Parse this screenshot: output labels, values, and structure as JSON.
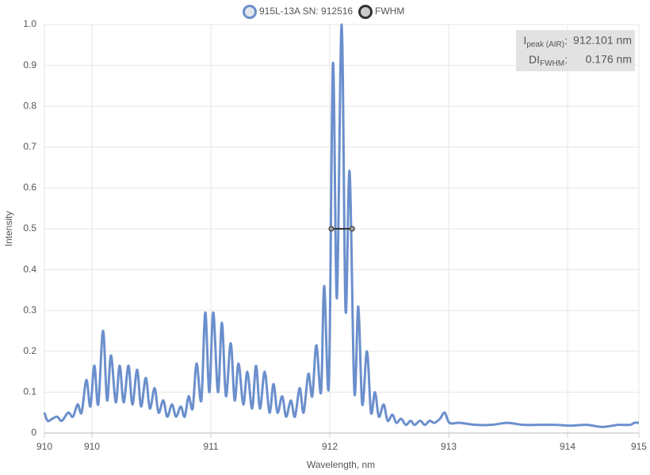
{
  "chart_data": {
    "type": "line",
    "x_label": "Wavelength, nm",
    "y_label": "Intensity",
    "xlim": [
      909.6,
      914.6
    ],
    "ylim": [
      0,
      1
    ],
    "xticks": [
      {
        "value": 909.6,
        "label": "910"
      },
      910,
      911,
      912,
      913,
      914,
      {
        "value": 914.6,
        "label": "915"
      }
    ],
    "yticks": [
      0,
      0.1,
      0.2,
      0.3,
      0.4,
      0.5,
      0.6,
      0.7,
      0.8,
      0.9,
      {
        "value": 1,
        "label": "1.0"
      }
    ],
    "grid": true,
    "legend": "top",
    "series": [
      {
        "name": "915L-13A SN: 912516",
        "color": "#6b8fcc",
        "x": [
          909.6,
          909.627,
          909.667,
          909.707,
          909.747,
          909.8,
          909.84,
          909.88,
          909.913,
          909.953,
          909.987,
          910.02,
          910.053,
          910.093,
          910.127,
          910.16,
          910.2,
          910.233,
          910.267,
          910.307,
          910.34,
          910.38,
          910.413,
          910.453,
          910.487,
          910.527,
          910.56,
          910.6,
          910.633,
          910.673,
          910.707,
          910.747,
          910.78,
          910.813,
          910.847,
          910.88,
          910.92,
          910.953,
          910.987,
          911.02,
          911.06,
          911.093,
          911.127,
          911.167,
          911.2,
          911.233,
          911.273,
          911.307,
          911.347,
          911.38,
          911.413,
          911.453,
          911.493,
          911.527,
          911.56,
          911.6,
          911.633,
          911.673,
          911.707,
          911.747,
          911.78,
          911.82,
          911.853,
          911.887,
          911.927,
          911.953,
          911.993,
          912.027,
          912.06,
          912.1,
          912.133,
          912.167,
          912.207,
          912.24,
          912.273,
          912.313,
          912.347,
          912.38,
          912.413,
          912.453,
          912.487,
          912.527,
          912.56,
          912.6,
          912.64,
          912.68,
          912.713,
          912.76,
          912.8,
          912.84,
          912.88,
          912.927,
          912.967,
          913.007,
          913.093,
          913.227,
          913.36,
          913.493,
          913.627,
          913.76,
          913.893,
          914.027,
          914.16,
          914.293,
          914.427,
          914.527,
          914.56,
          914.6
        ],
        "values": [
          0.05,
          0.03,
          0.035,
          0.04,
          0.03,
          0.05,
          0.04,
          0.07,
          0.05,
          0.13,
          0.065,
          0.165,
          0.07,
          0.25,
          0.08,
          0.19,
          0.075,
          0.165,
          0.075,
          0.165,
          0.07,
          0.155,
          0.065,
          0.135,
          0.06,
          0.11,
          0.05,
          0.08,
          0.04,
          0.07,
          0.04,
          0.065,
          0.04,
          0.09,
          0.06,
          0.17,
          0.08,
          0.295,
          0.1,
          0.295,
          0.1,
          0.27,
          0.09,
          0.22,
          0.08,
          0.17,
          0.07,
          0.15,
          0.06,
          0.165,
          0.06,
          0.15,
          0.05,
          0.12,
          0.05,
          0.09,
          0.04,
          0.08,
          0.04,
          0.11,
          0.05,
          0.145,
          0.09,
          0.215,
          0.1,
          0.36,
          0.12,
          0.905,
          0.33,
          1.0,
          0.3,
          0.64,
          0.1,
          0.31,
          0.07,
          0.2,
          0.05,
          0.1,
          0.04,
          0.07,
          0.03,
          0.045,
          0.025,
          0.035,
          0.02,
          0.03,
          0.02,
          0.03,
          0.02,
          0.03,
          0.025,
          0.035,
          0.05,
          0.025,
          0.025,
          0.02,
          0.02,
          0.025,
          0.02,
          0.02,
          0.02,
          0.018,
          0.02,
          0.015,
          0.02,
          0.02,
          0.025,
          0.025
        ]
      },
      {
        "name": "FWHM",
        "color": "#333333",
        "x": [
          912.013,
          912.189
        ],
        "values": [
          0.5,
          0.5
        ]
      }
    ],
    "info": [
      {
        "label": "I",
        "label_sub": "peak (AIR)",
        "suffix": ":",
        "value": "912.101 nm"
      },
      {
        "label": "DI",
        "label_sub": "FWHM",
        "suffix": ":",
        "value": "0.176 nm"
      }
    ]
  }
}
